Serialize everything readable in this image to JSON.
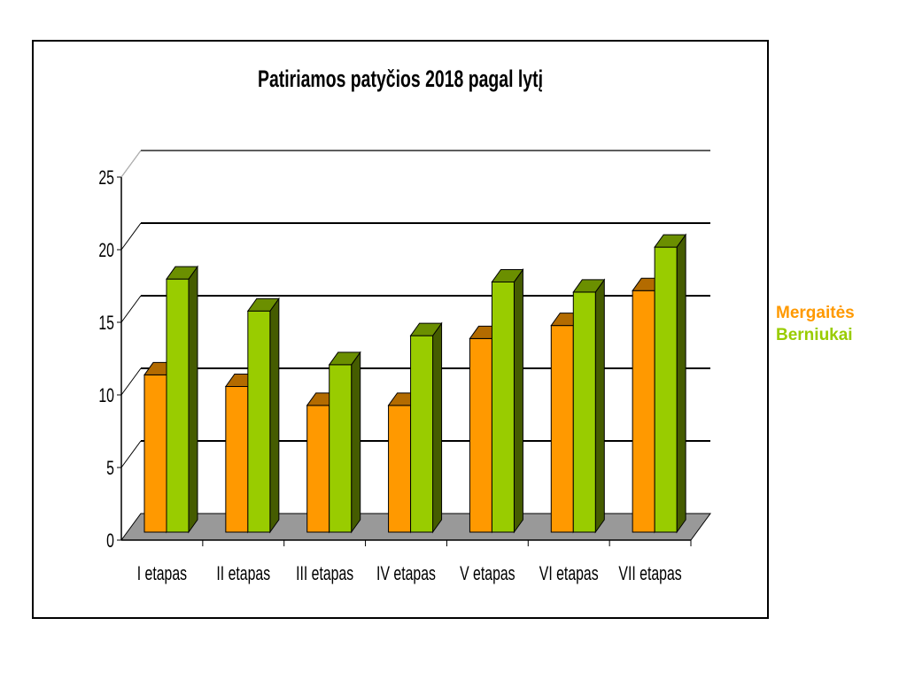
{
  "chart_data": {
    "type": "bar",
    "title": "Patiriamos patyčios 2018 pagal lytį",
    "categories": [
      "I etapas",
      "II etapas",
      "III etapas",
      "IV etapas",
      "V etapas",
      "VI etapas",
      "VII etapas"
    ],
    "series": [
      {
        "name": "Mergaitės",
        "color": "#ff9900",
        "values": [
          11.5,
          10.7,
          9.4,
          9.4,
          14.0,
          14.9,
          17.3
        ]
      },
      {
        "name": "Berniukai",
        "color": "#99cc00",
        "values": [
          18.1,
          15.9,
          12.2,
          14.2,
          17.9,
          17.2,
          20.3
        ]
      }
    ],
    "yticks": [
      0,
      5,
      10,
      15,
      20,
      25
    ],
    "ylim": [
      0,
      25
    ],
    "xlabel": "",
    "ylabel": "",
    "grid": true,
    "legend_position": "right",
    "floor_color": "#999999"
  }
}
